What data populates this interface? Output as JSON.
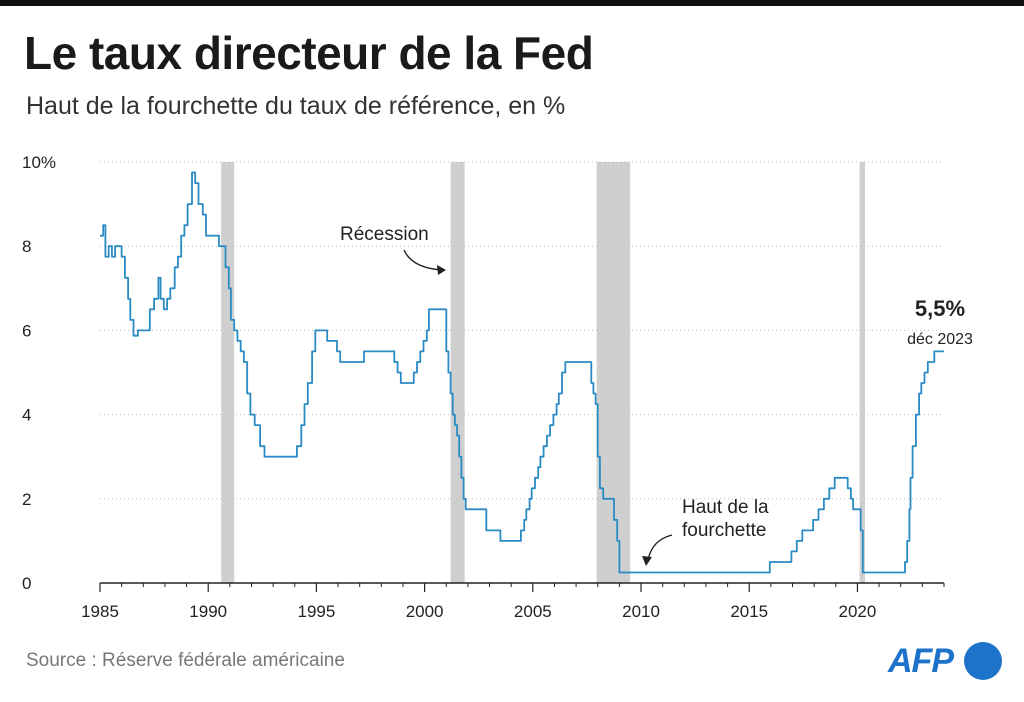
{
  "title": "Le taux directeur de la Fed",
  "subtitle": "Haut de la fourchette du taux de référence, en %",
  "source": "Source : Réserve fédérale américaine",
  "logo": "AFP",
  "colors": {
    "line": "#2a8bc4",
    "recession": "#cfcfcf",
    "axis": "#222222",
    "logo": "#1d73c9"
  },
  "chart_data": {
    "type": "line",
    "title": "Le taux directeur de la Fed",
    "subtitle": "Haut de la fourchette du taux de référence, en %",
    "xlabel": "",
    "ylabel": "",
    "xlim": [
      1985,
      2024
    ],
    "ylim": [
      0,
      10
    ],
    "y_ticks": [
      0,
      2,
      4,
      6,
      8,
      10
    ],
    "y_tick_labels": [
      "0",
      "2",
      "4",
      "6",
      "8",
      "10%"
    ],
    "x_ticks": [
      1985,
      1990,
      1995,
      2000,
      2005,
      2010,
      2015,
      2020
    ],
    "x_tick_labels": [
      "1985",
      "1990",
      "1995",
      "2000",
      "2005",
      "2010",
      "2015",
      "2020"
    ],
    "grid": "horizontal dotted",
    "step": true,
    "series": [
      {
        "x": [
          1985.0,
          1985.15,
          1985.25,
          1985.4,
          1985.55,
          1985.7,
          1986.0,
          1986.15,
          1986.3,
          1986.4,
          1986.55,
          1986.75,
          1986.9,
          1987.3,
          1987.5,
          1987.7,
          1987.8,
          1987.95,
          1988.1,
          1988.25,
          1988.45,
          1988.6,
          1988.75,
          1988.9,
          1989.05,
          1989.25,
          1989.4,
          1989.55,
          1989.75,
          1989.9,
          1990.1,
          1990.5,
          1990.8,
          1990.95,
          1991.05,
          1991.2,
          1991.35,
          1991.5,
          1991.65,
          1991.8,
          1991.95,
          1992.15,
          1992.4,
          1992.6,
          1992.8,
          1993.0,
          1993.5,
          1994.1,
          1994.3,
          1994.45,
          1994.6,
          1994.8,
          1994.95,
          1995.1,
          1995.5,
          1995.95,
          1996.1,
          1997.2,
          1997.5,
          1998.6,
          1998.75,
          1998.9,
          1999.5,
          1999.65,
          1999.8,
          1999.95,
          2000.1,
          2000.2,
          2000.4,
          2001.0,
          2001.1,
          2001.2,
          2001.3,
          2001.4,
          2001.5,
          2001.6,
          2001.7,
          2001.8,
          2001.9,
          2002.85,
          2003.5,
          2004.45,
          2004.6,
          2004.7,
          2004.85,
          2004.95,
          2005.1,
          2005.25,
          2005.35,
          2005.5,
          2005.65,
          2005.8,
          2005.95,
          2006.1,
          2006.2,
          2006.35,
          2006.5,
          2007.7,
          2007.8,
          2007.9,
          2008.0,
          2008.1,
          2008.25,
          2008.75,
          2008.9,
          2009.0,
          2015.95,
          2016.95,
          2017.2,
          2017.45,
          2017.95,
          2018.2,
          2018.45,
          2018.7,
          2018.95,
          2019.55,
          2019.7,
          2019.8,
          2020.15,
          2020.25,
          2022.2,
          2022.3,
          2022.4,
          2022.45,
          2022.55,
          2022.7,
          2022.85,
          2022.95,
          2023.1,
          2023.25,
          2023.55,
          2024.0
        ],
        "y": [
          8.25,
          8.5,
          7.75,
          8.0,
          7.75,
          8.0,
          7.75,
          7.25,
          6.75,
          6.25,
          5.875,
          6.0,
          6.0,
          6.5,
          6.75,
          7.25,
          6.75,
          6.5,
          6.75,
          7.0,
          7.5,
          7.75,
          8.25,
          8.5,
          9.0,
          9.75,
          9.5,
          9.0,
          8.75,
          8.25,
          8.25,
          8.0,
          7.5,
          7.0,
          6.25,
          6.0,
          5.75,
          5.5,
          5.25,
          4.5,
          4.0,
          3.75,
          3.25,
          3.0,
          3.0,
          3.0,
          3.0,
          3.25,
          3.75,
          4.25,
          4.75,
          5.5,
          6.0,
          6.0,
          5.75,
          5.5,
          5.25,
          5.5,
          5.5,
          5.25,
          5.0,
          4.75,
          5.0,
          5.25,
          5.5,
          5.75,
          6.0,
          6.5,
          6.5,
          5.5,
          5.0,
          4.5,
          4.0,
          3.75,
          3.5,
          3.0,
          2.5,
          2.0,
          1.75,
          1.25,
          1.0,
          1.25,
          1.5,
          1.75,
          2.0,
          2.25,
          2.5,
          2.75,
          3.0,
          3.25,
          3.5,
          3.75,
          4.0,
          4.25,
          4.5,
          5.0,
          5.25,
          4.75,
          4.5,
          4.25,
          3.0,
          2.25,
          2.0,
          1.5,
          1.0,
          0.25,
          0.5,
          0.75,
          1.0,
          1.25,
          1.5,
          1.75,
          2.0,
          2.25,
          2.5,
          2.25,
          2.0,
          1.75,
          1.25,
          0.25,
          0.5,
          1.0,
          1.75,
          2.5,
          3.25,
          4.0,
          4.5,
          4.75,
          5.0,
          5.25,
          5.5,
          5.5
        ]
      }
    ],
    "recessions": [
      [
        1990.6,
        1991.2
      ],
      [
        2001.2,
        2001.85
      ],
      [
        2007.95,
        2009.5
      ],
      [
        2020.1,
        2020.35
      ]
    ],
    "annotations": [
      {
        "label": "Récession"
      },
      {
        "label": "Haut de la fourchette"
      },
      {
        "label": "5,5%",
        "sub": "déc 2023"
      }
    ]
  }
}
